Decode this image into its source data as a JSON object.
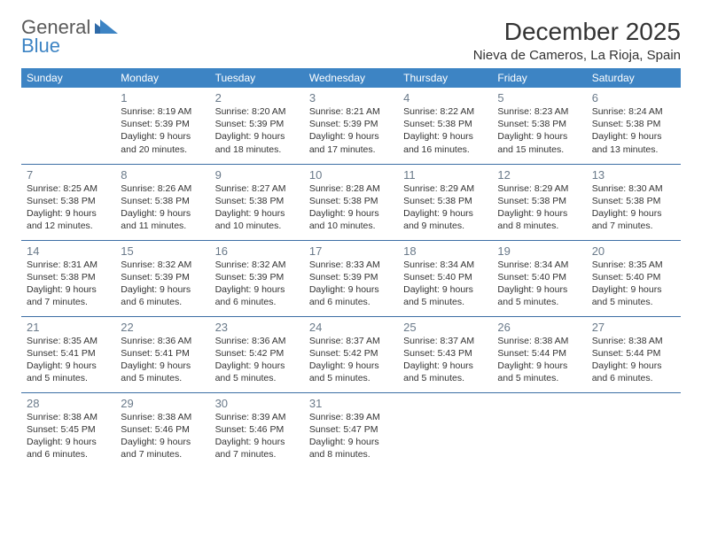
{
  "brand": {
    "general": "General",
    "blue": "Blue",
    "accent": "#3d84c4"
  },
  "title": "December 2025",
  "location": "Nieva de Cameros, La Rioja, Spain",
  "colors": {
    "header_bg": "#3d84c4",
    "header_fg": "#ffffff",
    "row_divider": "#3d6fa5",
    "daynum": "#6a7a8a",
    "text": "#333333",
    "background": "#ffffff"
  },
  "typography": {
    "body_pt": 10.5,
    "daynum_pt": 13,
    "dow_pt": 12,
    "title_pt": 28,
    "location_pt": 15
  },
  "days_of_week": [
    "Sunday",
    "Monday",
    "Tuesday",
    "Wednesday",
    "Thursday",
    "Friday",
    "Saturday"
  ],
  "grid": {
    "leading_blanks": 1,
    "days": [
      {
        "n": 1,
        "sunrise": "8:19 AM",
        "sunset": "5:39 PM",
        "daylight": "9 hours and 20 minutes."
      },
      {
        "n": 2,
        "sunrise": "8:20 AM",
        "sunset": "5:39 PM",
        "daylight": "9 hours and 18 minutes."
      },
      {
        "n": 3,
        "sunrise": "8:21 AM",
        "sunset": "5:39 PM",
        "daylight": "9 hours and 17 minutes."
      },
      {
        "n": 4,
        "sunrise": "8:22 AM",
        "sunset": "5:38 PM",
        "daylight": "9 hours and 16 minutes."
      },
      {
        "n": 5,
        "sunrise": "8:23 AM",
        "sunset": "5:38 PM",
        "daylight": "9 hours and 15 minutes."
      },
      {
        "n": 6,
        "sunrise": "8:24 AM",
        "sunset": "5:38 PM",
        "daylight": "9 hours and 13 minutes."
      },
      {
        "n": 7,
        "sunrise": "8:25 AM",
        "sunset": "5:38 PM",
        "daylight": "9 hours and 12 minutes."
      },
      {
        "n": 8,
        "sunrise": "8:26 AM",
        "sunset": "5:38 PM",
        "daylight": "9 hours and 11 minutes."
      },
      {
        "n": 9,
        "sunrise": "8:27 AM",
        "sunset": "5:38 PM",
        "daylight": "9 hours and 10 minutes."
      },
      {
        "n": 10,
        "sunrise": "8:28 AM",
        "sunset": "5:38 PM",
        "daylight": "9 hours and 10 minutes."
      },
      {
        "n": 11,
        "sunrise": "8:29 AM",
        "sunset": "5:38 PM",
        "daylight": "9 hours and 9 minutes."
      },
      {
        "n": 12,
        "sunrise": "8:29 AM",
        "sunset": "5:38 PM",
        "daylight": "9 hours and 8 minutes."
      },
      {
        "n": 13,
        "sunrise": "8:30 AM",
        "sunset": "5:38 PM",
        "daylight": "9 hours and 7 minutes."
      },
      {
        "n": 14,
        "sunrise": "8:31 AM",
        "sunset": "5:38 PM",
        "daylight": "9 hours and 7 minutes."
      },
      {
        "n": 15,
        "sunrise": "8:32 AM",
        "sunset": "5:39 PM",
        "daylight": "9 hours and 6 minutes."
      },
      {
        "n": 16,
        "sunrise": "8:32 AM",
        "sunset": "5:39 PM",
        "daylight": "9 hours and 6 minutes."
      },
      {
        "n": 17,
        "sunrise": "8:33 AM",
        "sunset": "5:39 PM",
        "daylight": "9 hours and 6 minutes."
      },
      {
        "n": 18,
        "sunrise": "8:34 AM",
        "sunset": "5:40 PM",
        "daylight": "9 hours and 5 minutes."
      },
      {
        "n": 19,
        "sunrise": "8:34 AM",
        "sunset": "5:40 PM",
        "daylight": "9 hours and 5 minutes."
      },
      {
        "n": 20,
        "sunrise": "8:35 AM",
        "sunset": "5:40 PM",
        "daylight": "9 hours and 5 minutes."
      },
      {
        "n": 21,
        "sunrise": "8:35 AM",
        "sunset": "5:41 PM",
        "daylight": "9 hours and 5 minutes."
      },
      {
        "n": 22,
        "sunrise": "8:36 AM",
        "sunset": "5:41 PM",
        "daylight": "9 hours and 5 minutes."
      },
      {
        "n": 23,
        "sunrise": "8:36 AM",
        "sunset": "5:42 PM",
        "daylight": "9 hours and 5 minutes."
      },
      {
        "n": 24,
        "sunrise": "8:37 AM",
        "sunset": "5:42 PM",
        "daylight": "9 hours and 5 minutes."
      },
      {
        "n": 25,
        "sunrise": "8:37 AM",
        "sunset": "5:43 PM",
        "daylight": "9 hours and 5 minutes."
      },
      {
        "n": 26,
        "sunrise": "8:38 AM",
        "sunset": "5:44 PM",
        "daylight": "9 hours and 5 minutes."
      },
      {
        "n": 27,
        "sunrise": "8:38 AM",
        "sunset": "5:44 PM",
        "daylight": "9 hours and 6 minutes."
      },
      {
        "n": 28,
        "sunrise": "8:38 AM",
        "sunset": "5:45 PM",
        "daylight": "9 hours and 6 minutes."
      },
      {
        "n": 29,
        "sunrise": "8:38 AM",
        "sunset": "5:46 PM",
        "daylight": "9 hours and 7 minutes."
      },
      {
        "n": 30,
        "sunrise": "8:39 AM",
        "sunset": "5:46 PM",
        "daylight": "9 hours and 7 minutes."
      },
      {
        "n": 31,
        "sunrise": "8:39 AM",
        "sunset": "5:47 PM",
        "daylight": "9 hours and 8 minutes."
      }
    ]
  },
  "labels": {
    "sunrise": "Sunrise:",
    "sunset": "Sunset:",
    "daylight": "Daylight:"
  }
}
